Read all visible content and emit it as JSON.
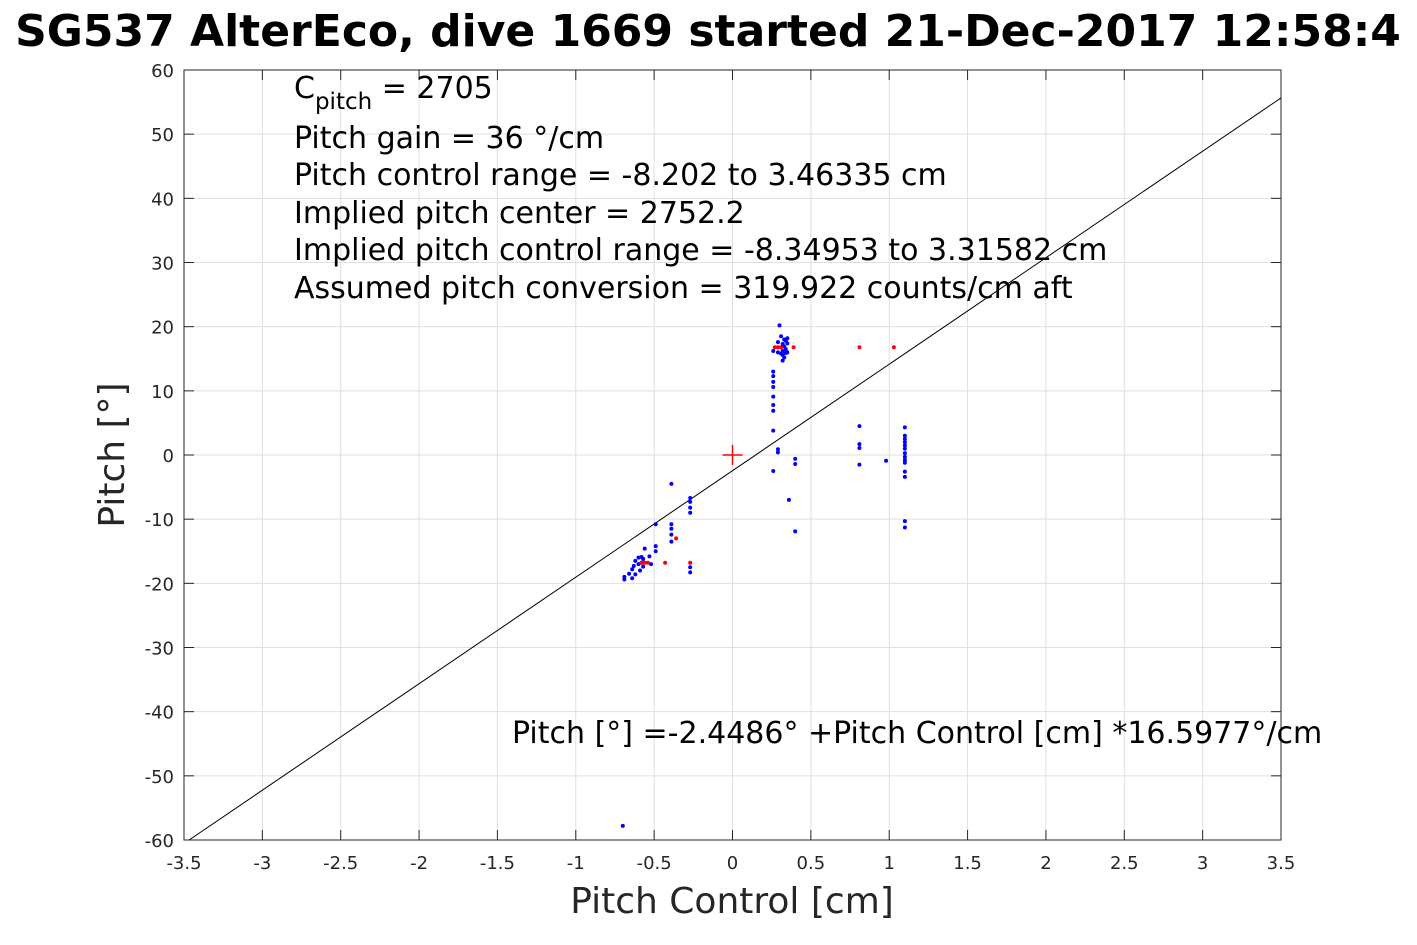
{
  "chart_data": {
    "type": "scatter",
    "title": "SG537 AlterEco, dive 1669 started 21-Dec-2017 12:58:4",
    "xlabel": "Pitch Control [cm]",
    "ylabel": "Pitch [°]",
    "xlim": [
      -3.5,
      3.5
    ],
    "ylim": [
      -60,
      60
    ],
    "xticks": [
      "-3.5",
      "-3",
      "-2.5",
      "-2",
      "-1.5",
      "-1",
      "-0.5",
      "0",
      "0.5",
      "1",
      "1.5",
      "2",
      "2.5",
      "3",
      "3.5"
    ],
    "yticks": [
      "60",
      "50",
      "40",
      "30",
      "20",
      "10",
      "0",
      "-10",
      "-20",
      "-30",
      "-40",
      "-50",
      "-60"
    ],
    "grid": true,
    "annotations": {
      "cpitch_main": "C",
      "cpitch_sub": "pitch",
      "cpitch_value": " = 2705",
      "line2": "Pitch gain = 36 °/cm",
      "line3": "Pitch control range = -8.202 to 3.46335 cm",
      "line4": "Implied pitch center = 2752.2",
      "line5": "Implied pitch control range = -8.34953 to 3.31582 cm",
      "line6": "Assumed pitch conversion = 319.922 counts/cm aft",
      "fit_text": "Pitch [°] =-2.4486° +Pitch Control [cm] *16.5977°/cm"
    },
    "fit_line": {
      "intercept": -2.4486,
      "slope": 16.5977,
      "color": "#000000"
    },
    "center_marker": {
      "x": 0,
      "y": 0,
      "color": "#ff0000"
    },
    "series": [
      {
        "color": "#0000ff",
        "points": [
          [
            -0.7,
            -57.8
          ],
          [
            -0.69,
            -19.0
          ],
          [
            -0.69,
            -19.4
          ],
          [
            -0.66,
            -18.5
          ],
          [
            -0.64,
            -19.2
          ],
          [
            -0.64,
            -17.8
          ],
          [
            -0.63,
            -17.3
          ],
          [
            -0.62,
            -16.5
          ],
          [
            -0.62,
            -18.6
          ],
          [
            -0.6,
            -17.0
          ],
          [
            -0.6,
            -16.0
          ],
          [
            -0.59,
            -18.0
          ],
          [
            -0.58,
            -16.8
          ],
          [
            -0.58,
            -15.9
          ],
          [
            -0.57,
            -17.4
          ],
          [
            -0.57,
            -16.2
          ],
          [
            -0.56,
            -14.6
          ],
          [
            -0.53,
            -15.8
          ],
          [
            -0.52,
            -17.0
          ],
          [
            -0.49,
            -15.0
          ],
          [
            -0.49,
            -14.2
          ],
          [
            -0.49,
            -10.8
          ],
          [
            -0.39,
            -4.5
          ],
          [
            -0.39,
            -10.8
          ],
          [
            -0.39,
            -11.5
          ],
          [
            -0.39,
            -12.4
          ],
          [
            -0.39,
            -13.5
          ],
          [
            -0.27,
            -6.7
          ],
          [
            -0.27,
            -7.3
          ],
          [
            -0.27,
            -8.2
          ],
          [
            -0.27,
            -9.0
          ],
          [
            -0.27,
            -17.5
          ],
          [
            -0.27,
            -18.3
          ],
          [
            0.26,
            -2.5
          ],
          [
            0.26,
            3.8
          ],
          [
            0.26,
            6.9
          ],
          [
            0.26,
            7.8
          ],
          [
            0.26,
            9.1
          ],
          [
            0.26,
            10.6
          ],
          [
            0.26,
            11.4
          ],
          [
            0.26,
            12.3
          ],
          [
            0.26,
            13.0
          ],
          [
            0.26,
            16.2
          ],
          [
            0.29,
            0.4
          ],
          [
            0.29,
            0.9
          ],
          [
            0.29,
            16.0
          ],
          [
            0.29,
            17.6
          ],
          [
            0.3,
            20.2
          ],
          [
            0.31,
            18.5
          ],
          [
            0.31,
            15.8
          ],
          [
            0.32,
            17.3
          ],
          [
            0.32,
            16.2
          ],
          [
            0.32,
            15.6
          ],
          [
            0.32,
            14.7
          ],
          [
            0.33,
            18.0
          ],
          [
            0.33,
            16.9
          ],
          [
            0.34,
            17.8
          ],
          [
            0.34,
            16.5
          ],
          [
            0.34,
            15.9
          ],
          [
            0.35,
            18.2
          ],
          [
            0.35,
            17.4
          ],
          [
            0.35,
            16.0
          ],
          [
            0.33,
            15.2
          ],
          [
            0.36,
            -7.0
          ],
          [
            0.4,
            -0.6
          ],
          [
            0.4,
            -1.4
          ],
          [
            0.4,
            -11.9
          ],
          [
            0.81,
            4.5
          ],
          [
            0.81,
            1.7
          ],
          [
            0.81,
            1.1
          ],
          [
            0.81,
            -1.5
          ],
          [
            0.98,
            -0.9
          ],
          [
            1.1,
            4.3
          ],
          [
            1.1,
            3.0
          ],
          [
            1.1,
            2.5
          ],
          [
            1.1,
            2.0
          ],
          [
            1.1,
            1.5
          ],
          [
            1.1,
            1.0
          ],
          [
            1.1,
            0.3
          ],
          [
            1.1,
            -0.3
          ],
          [
            1.1,
            -0.8
          ],
          [
            1.1,
            -1.2
          ],
          [
            1.1,
            -2.6
          ],
          [
            1.1,
            -3.4
          ],
          [
            1.1,
            -10.3
          ],
          [
            1.1,
            -11.3
          ]
        ]
      },
      {
        "color": "#ff0000",
        "points": [
          [
            -0.58,
            -16.8
          ],
          [
            -0.56,
            -16.8
          ],
          [
            -0.54,
            -16.8
          ],
          [
            -0.43,
            -16.8
          ],
          [
            -0.36,
            -13.0
          ],
          [
            -0.27,
            -16.8
          ],
          [
            0.27,
            16.8
          ],
          [
            0.29,
            16.8
          ],
          [
            0.31,
            16.8
          ],
          [
            0.39,
            16.8
          ],
          [
            0.81,
            16.8
          ],
          [
            1.03,
            16.8
          ]
        ]
      }
    ]
  }
}
